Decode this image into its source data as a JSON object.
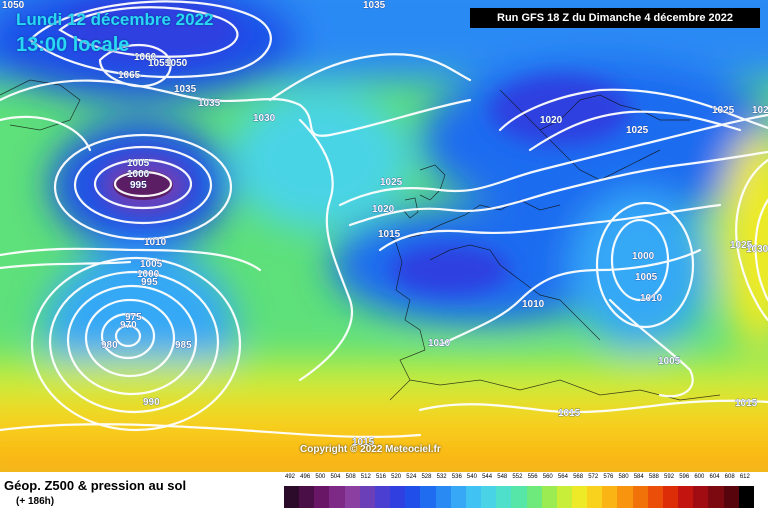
{
  "header": {
    "date_line": "Lundi 12 décembre 2022",
    "time_line": "13:00 locale",
    "run_info": "Run GFS 18 Z du Dimanche 4 décembre 2022"
  },
  "copyright": "Copyright © 2022 Meteociel.fr",
  "footer": {
    "title": "Géop. Z500 & pression au sol",
    "subtitle": "(+ 186h)"
  },
  "isobar_labels": [
    "1050",
    "1035",
    "1065",
    "1060",
    "1055",
    "1050",
    "1035",
    "1035",
    "1030",
    "1005",
    "1000",
    "995",
    "1010",
    "1005",
    "1000",
    "995",
    "975",
    "970",
    "980",
    "985",
    "990",
    "1025",
    "1020",
    "1015",
    "1020",
    "1025",
    "1025",
    "1010",
    "1010",
    "1000",
    "1005",
    "1010",
    "1005",
    "1015",
    "1015",
    "1015",
    "1025",
    "1030",
    "102"
  ],
  "scale": {
    "values": [
      "492",
      "496",
      "500",
      "504",
      "508",
      "512",
      "516",
      "520",
      "524",
      "528",
      "532",
      "536",
      "540",
      "544",
      "548",
      "552",
      "556",
      "560",
      "564",
      "568",
      "572",
      "576",
      "580",
      "584",
      "588",
      "592",
      "596",
      "600",
      "604",
      "608",
      "612"
    ],
    "colors": [
      "#2b0a2a",
      "#4a0f46",
      "#6a1666",
      "#7d2a86",
      "#8b3fa0",
      "#6a3fb8",
      "#4a3fd0",
      "#2f3fe0",
      "#1f4fe8",
      "#1f6cf0",
      "#2a8af4",
      "#36a8f6",
      "#40c2f2",
      "#48d4e6",
      "#4fe0cc",
      "#56e6a8",
      "#6eea7c",
      "#9aec52",
      "#c8ee3a",
      "#eeea28",
      "#f8d21c",
      "#fab414",
      "#f8940e",
      "#f2720a",
      "#ea4e08",
      "#dc2c08",
      "#c41410",
      "#a00c12",
      "#7c0810",
      "#58040c",
      "#000000"
    ]
  }
}
